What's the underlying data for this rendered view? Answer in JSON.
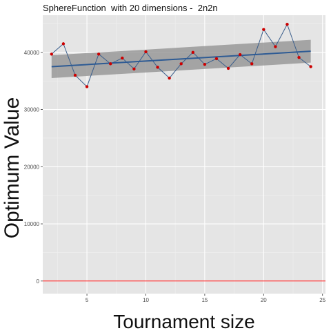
{
  "chart_data": {
    "type": "line",
    "title": "SphereFunction  with 20 dimensions -  2n2n",
    "xlabel": "Tournament size",
    "ylabel": "Optimum Value",
    "xlim": [
      1.25,
      25.25
    ],
    "ylim": [
      -2200,
      46500
    ],
    "x_ticks": [
      5,
      10,
      15,
      20,
      25
    ],
    "y_ticks": [
      0,
      10000,
      20000,
      30000,
      40000
    ],
    "grid": true,
    "series": [
      {
        "type": "line",
        "color": "#3a5e8c",
        "point_color": "#cc0000",
        "x": [
          2,
          3,
          4,
          5,
          6,
          7,
          8,
          9,
          10,
          11,
          12,
          13,
          14,
          15,
          16,
          17,
          18,
          19,
          20,
          21,
          22,
          23,
          24
        ],
        "values": [
          39700,
          41500,
          36000,
          34000,
          39700,
          38000,
          39000,
          37100,
          40100,
          37400,
          35500,
          38000,
          40000,
          37900,
          38900,
          37200,
          39600,
          38000,
          44000,
          41000,
          44900,
          39100,
          37500
        ]
      },
      {
        "type": "trend",
        "color": "#2e5b94",
        "band_color": "#999999",
        "x": [
          2,
          24
        ],
        "values": [
          37500,
          40200
        ],
        "band_lower": [
          35500,
          38200
        ],
        "band_upper": [
          39500,
          42200
        ]
      },
      {
        "type": "hline",
        "color": "#ff0000",
        "value": 0
      }
    ]
  }
}
